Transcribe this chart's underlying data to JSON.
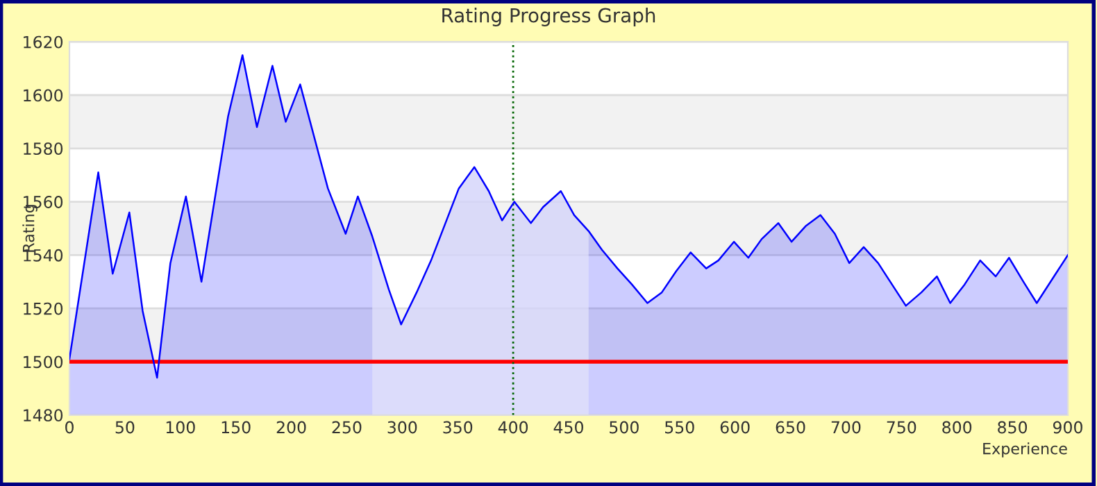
{
  "chart_data": {
    "type": "area",
    "title": "Rating Progress Graph",
    "xlabel": "Experience",
    "ylabel": "Rating",
    "x": [
      0,
      26,
      39,
      54,
      66,
      79,
      91,
      105,
      119,
      143,
      156,
      169,
      183,
      195,
      208,
      233,
      249,
      260,
      273,
      288,
      299,
      313,
      326,
      351,
      365,
      378,
      390,
      401,
      416,
      427,
      443,
      455,
      468,
      480,
      494,
      507,
      521,
      534,
      547,
      560,
      574,
      585,
      599,
      612,
      624,
      639,
      651,
      664,
      677,
      690,
      703,
      716,
      729,
      754,
      768,
      782,
      794,
      807,
      821,
      835,
      847,
      860,
      872,
      900
    ],
    "series": [
      {
        "color": "#0000ff",
        "values": [
          1501,
          1571,
          1533,
          1556,
          1519,
          1494,
          1537,
          1562,
          1530,
          1592,
          1615,
          1588,
          1611,
          1590,
          1604,
          1565,
          1548,
          1562,
          1547,
          1527,
          1514,
          1526,
          1538,
          1565,
          1573,
          1564,
          1553,
          1560,
          1552,
          1558,
          1564,
          1555,
          1549,
          1542,
          1535,
          1529,
          1522,
          1526,
          1534,
          1541,
          1535,
          1538,
          1545,
          1539,
          1546,
          1552,
          1545,
          1551,
          1555,
          1548,
          1537,
          1543,
          1537,
          1521,
          1526,
          1532,
          1522,
          1529,
          1538,
          1532,
          1539,
          1530,
          1522,
          1540
        ]
      }
    ],
    "xlim": [
      0,
      900
    ],
    "xticks": [
      0,
      50,
      100,
      150,
      200,
      250,
      300,
      350,
      400,
      450,
      500,
      550,
      600,
      650,
      700,
      750,
      800,
      850,
      900
    ],
    "ylim": [
      1480,
      1620
    ],
    "yticks": [
      1480,
      1500,
      1520,
      1540,
      1560,
      1580,
      1600,
      1620
    ],
    "grid": "y",
    "ref_lines": [
      {
        "axis": "y",
        "value": 1500,
        "color": "#ff0000",
        "line_style": "solid"
      },
      {
        "axis": "x",
        "value": 400,
        "color": "#006400",
        "line_style": "dotted"
      }
    ],
    "bands": [
      {
        "axis": "x",
        "from": 273,
        "to": 468,
        "color": "#e2e2fa"
      }
    ]
  }
}
